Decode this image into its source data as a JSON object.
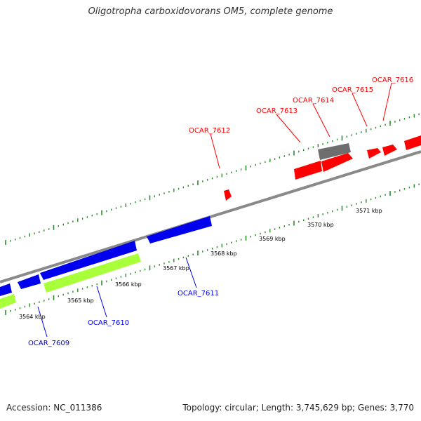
{
  "map": {
    "title": "Oligotropha carboxidovorans OM5, complete genome",
    "accession": "Accession: NC_011386",
    "summary": "Topology: circular; Length: 3,745,629 bp; Genes: 3,770"
  },
  "colors": {
    "background": "#ffffff",
    "backbone": "#8a8a8a",
    "ticks": "#2e8b2e",
    "forward_genes": "#ff0000",
    "reverse_genes": "#0000ee",
    "gray_gene": "#6e6e6e",
    "rna_genes": "#a8ff3a",
    "forward_labels": "#ff0000",
    "reverse_labels": "#0000ee"
  },
  "scale_labels": [
    "3564 kbp",
    "3565 kbp",
    "3566 kbp",
    "3567 kbp",
    "3568 kbp",
    "3569 kbp",
    "3570 kbp",
    "3571 kbp"
  ],
  "genes": [
    {
      "label": "OCAR_7612",
      "strand": "forward"
    },
    {
      "label": "OCAR_7613",
      "strand": "forward"
    },
    {
      "label": "OCAR_7614",
      "strand": "forward"
    },
    {
      "label": "OCAR_7615",
      "strand": "forward"
    },
    {
      "label": "OCAR_7616",
      "strand": "forward"
    },
    {
      "label": "OCAR_7609",
      "strand": "reverse"
    },
    {
      "label": "OCAR_7610",
      "strand": "reverse"
    },
    {
      "label": "OCAR_7611",
      "strand": "reverse"
    }
  ]
}
